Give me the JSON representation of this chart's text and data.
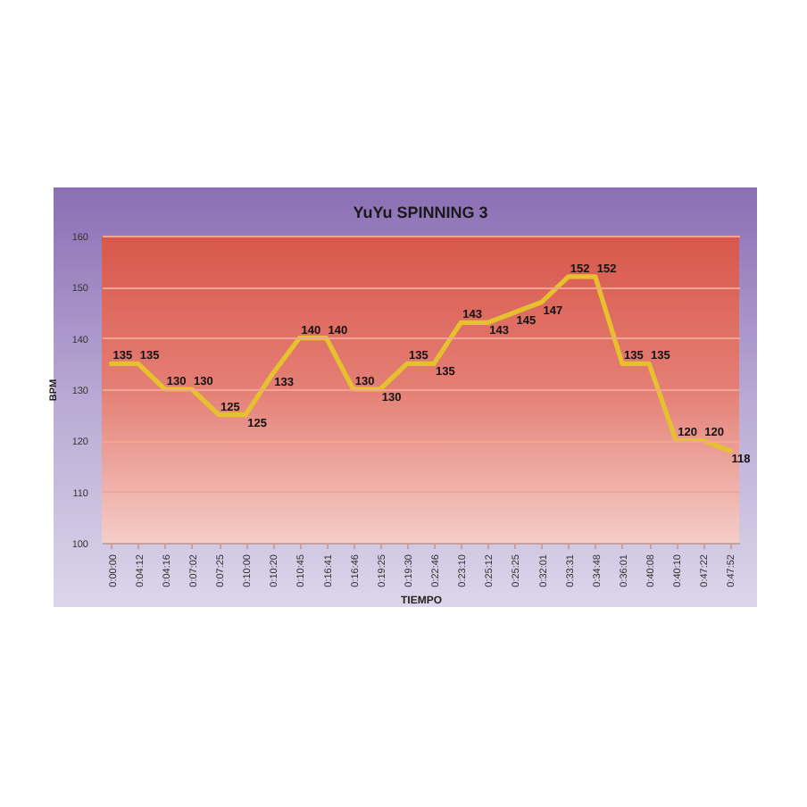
{
  "chart_data": {
    "type": "line",
    "title": "YuYu SPINNING 3",
    "xlabel": "TIEMPO",
    "ylabel": "BPM",
    "categories": [
      "0:00:00",
      "0:04:12",
      "0:04:16",
      "0:07:02",
      "0:07:25",
      "0:10:00",
      "0:10:20",
      "0:10:45",
      "0:16:41",
      "0:16:46",
      "0:19:25",
      "0:19:30",
      "0:22:46",
      "0:23:10",
      "0:25:12",
      "0:25:25",
      "0:32:01",
      "0:33:31",
      "0:34:48",
      "0:36:01",
      "0:40:08",
      "0:40:10",
      "0:47:22",
      "0:47:52"
    ],
    "series": [
      {
        "color": "#e6c12e",
        "values": [
          135,
          135,
          130,
          130,
          125,
          125,
          133,
          140,
          140,
          130,
          130,
          135,
          135,
          143,
          143,
          145,
          147,
          152,
          152,
          135,
          135,
          120,
          120,
          118
        ]
      }
    ],
    "ylim": [
      100,
      160
    ],
    "yticks": [
      100,
      110,
      120,
      130,
      140,
      150,
      160
    ],
    "grid": "y",
    "marker": "none",
    "line_style": "solid",
    "data_labels": true
  }
}
